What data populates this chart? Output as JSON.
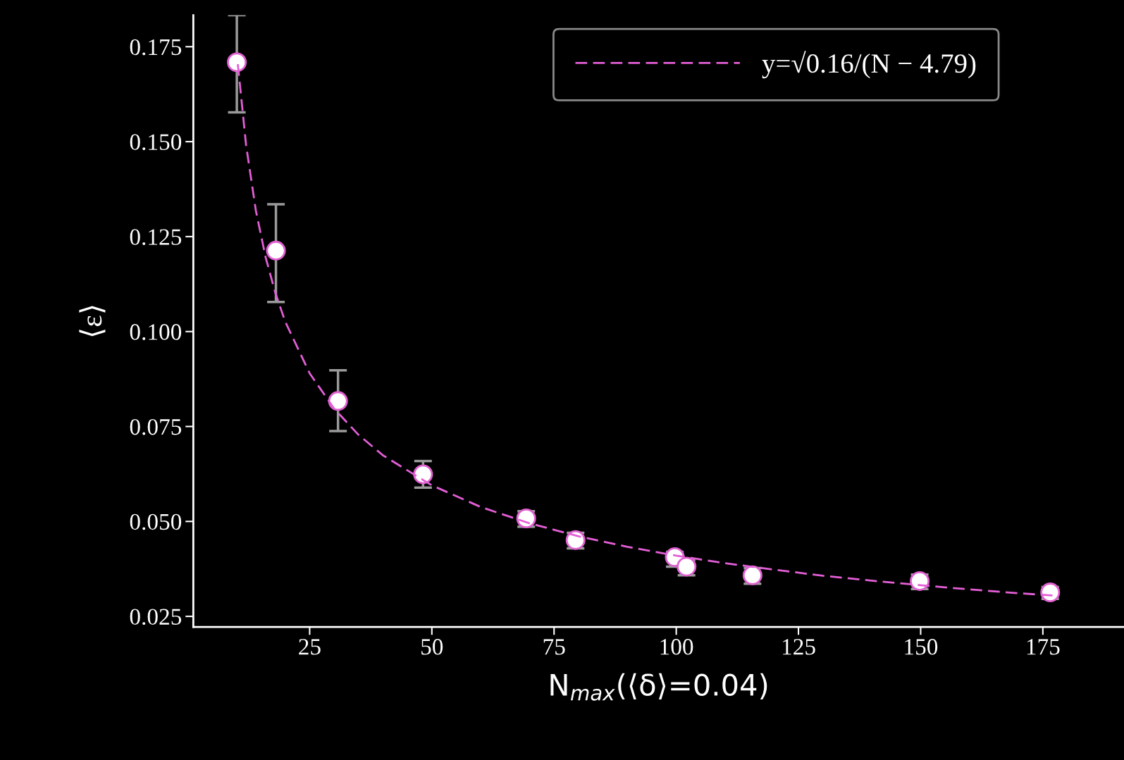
{
  "chart_data": {
    "type": "scatter",
    "xlabel": "N$_{max}$(⟨δ⟩=0.04)",
    "ylabel": "⟨ε⟩",
    "xlim": [
      1.2,
      191.6
    ],
    "ylim": [
      0.0222,
      0.1833
    ],
    "xticks": [
      25,
      50,
      75,
      100,
      125,
      150,
      175
    ],
    "yticks": [
      {
        "value": 0.025,
        "label": "0.025"
      },
      {
        "value": 0.05,
        "label": "0.050"
      },
      {
        "value": 0.075,
        "label": "0.075"
      },
      {
        "value": 0.1,
        "label": "0.100"
      },
      {
        "value": 0.125,
        "label": "0.125"
      },
      {
        "value": 0.15,
        "label": "0.150"
      },
      {
        "value": 0.175,
        "label": "0.175"
      }
    ],
    "grid": false,
    "legend": "top right",
    "series": [
      {
        "color": "#e060d0",
        "marker": "circle",
        "x": [
          10.1,
          18.1,
          30.8,
          48.2,
          69.3,
          79.4,
          99.7,
          102.1,
          115.6,
          149.8,
          176.5
        ],
        "values": [
          0.1709,
          0.1213,
          0.0817,
          0.0624,
          0.0508,
          0.0451,
          0.0406,
          0.0381,
          0.0358,
          0.0343,
          0.0313
        ],
        "errors": [
          [
            0.1577,
            0.1833
          ],
          [
            0.1078,
            0.1335
          ],
          [
            0.0738,
            0.0898
          ],
          [
            0.0589,
            0.0659
          ],
          [
            0.0486,
            0.0527
          ],
          [
            0.0429,
            0.047
          ],
          [
            0.0381,
            0.042
          ],
          [
            0.0358,
            0.0398
          ],
          [
            0.0336,
            0.0377
          ],
          [
            0.0322,
            0.036
          ],
          [
            0.0296,
            0.0327
          ]
        ]
      },
      {
        "type": "line",
        "name": "y=√0.16/(N − 4.79)",
        "color": "#e35ed6",
        "line_style": "dashed",
        "marker": "none",
        "x": [
          10.3,
          12,
          14,
          16,
          18,
          20,
          25,
          30,
          35,
          40,
          50,
          60,
          70,
          80,
          90,
          100,
          110,
          120,
          130,
          140,
          150,
          160,
          170,
          177
        ],
        "values": [
          0.1704,
          0.149,
          0.1318,
          0.1195,
          0.1101,
          0.1026,
          0.089,
          0.0797,
          0.0728,
          0.0674,
          0.0595,
          0.0538,
          0.0495,
          0.0461,
          0.0433,
          0.041,
          0.039,
          0.0373,
          0.0357,
          0.0344,
          0.0332,
          0.0321,
          0.0311,
          0.0305
        ]
      }
    ]
  }
}
